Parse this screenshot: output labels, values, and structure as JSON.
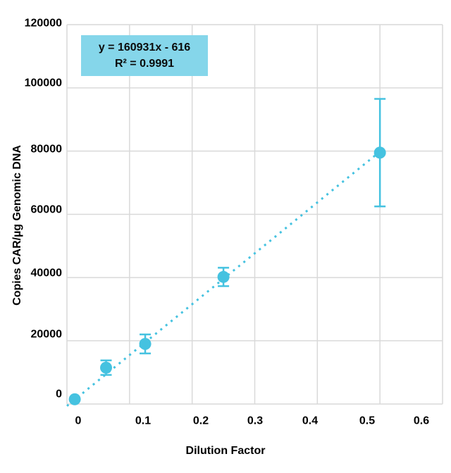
{
  "chart_data": {
    "type": "scatter",
    "title": "",
    "xlabel": "Dilution Factor",
    "ylabel": "Copies CAR/µg Genomic DNA",
    "xlim": [
      0,
      0.6
    ],
    "ylim": [
      0,
      120000
    ],
    "xticks": [
      0,
      0.1,
      0.2,
      0.3,
      0.4,
      0.5,
      0.6
    ],
    "xtick_labels": [
      "0",
      "0.1",
      "0.2",
      "0.3",
      "0.4",
      "0.5",
      "0.6"
    ],
    "yticks": [
      0,
      20000,
      40000,
      60000,
      80000,
      100000,
      120000
    ],
    "ytick_labels": [
      "0",
      "20000",
      "40000",
      "60000",
      "80000",
      "100000",
      "120000"
    ],
    "grid": true,
    "legend": "none",
    "series": [
      {
        "name": "Copies CAR per µg genomic DNA",
        "marker": "circle",
        "marker_color": "#45c2e0",
        "points": [
          {
            "x": 0.0125,
            "y": 1500,
            "yerr": 0
          },
          {
            "x": 0.0625,
            "y": 11500,
            "yerr": 2300
          },
          {
            "x": 0.125,
            "y": 19000,
            "yerr": 3000
          },
          {
            "x": 0.25,
            "y": 40200,
            "yerr": 2900
          },
          {
            "x": 0.5,
            "y": 79500,
            "yerr": 17000
          }
        ]
      }
    ],
    "trendline": {
      "equation": "y = 160931x - 616",
      "slope": 160931,
      "intercept": -616,
      "r_squared": "R² = 0.9991",
      "style": "dotted",
      "color": "#45c2e0",
      "x_start": 0,
      "x_end": 0.5
    },
    "annotation": {
      "line1": "y = 160931x - 616",
      "line2": "R² = 0.9991",
      "bg_color": "#85d6ea"
    },
    "colors": {
      "marker": "#45c2e0",
      "gridline": "#d9d9d9",
      "tick_label": "#000000",
      "annotation_bg": "#85d6ea",
      "background": "#ffffff"
    }
  }
}
